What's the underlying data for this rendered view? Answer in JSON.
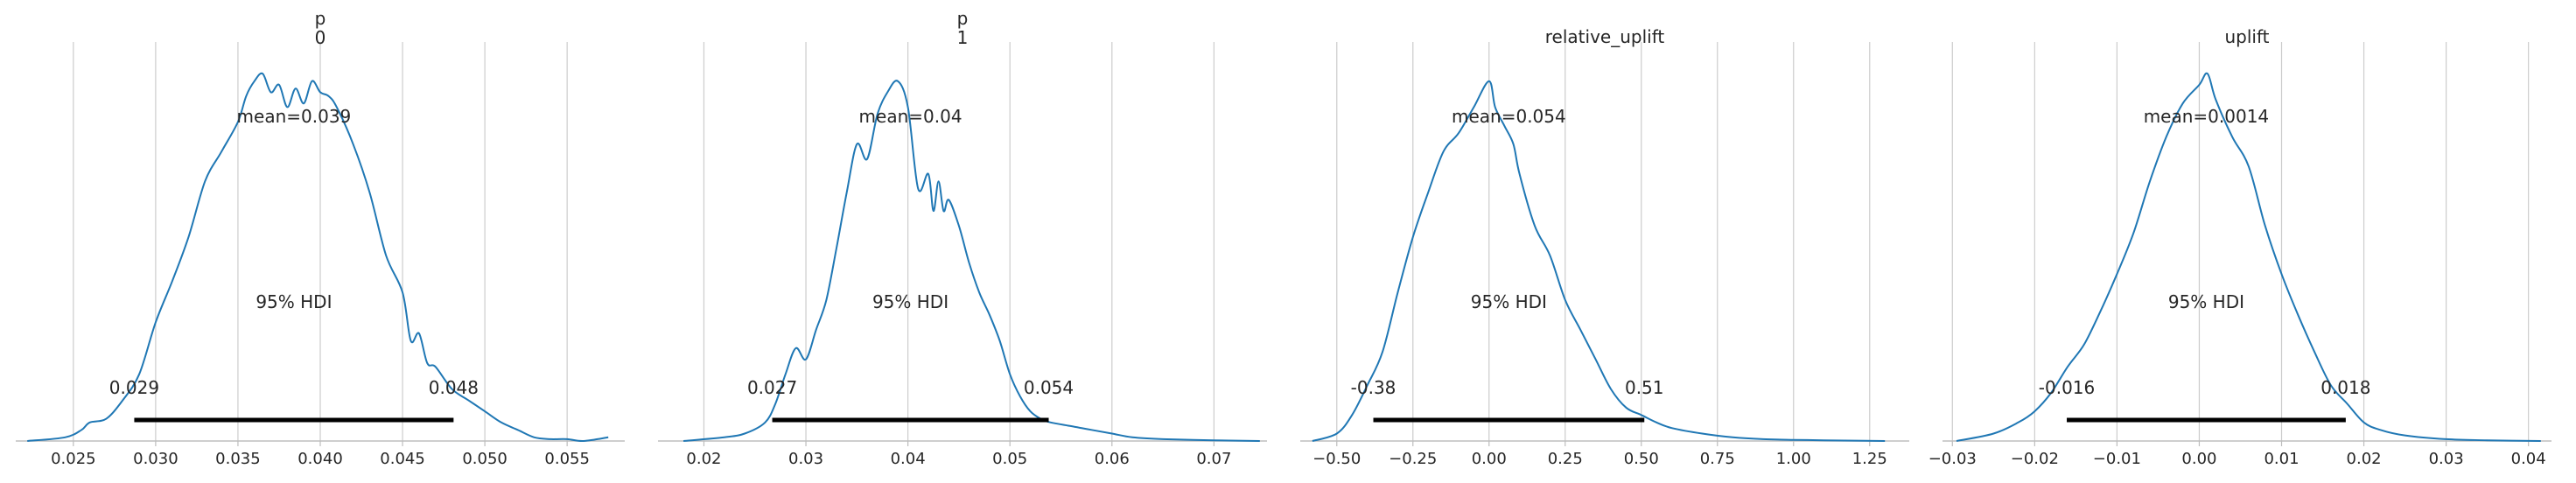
{
  "chart_data": [
    {
      "type": "density",
      "title": "p\n0",
      "title_lines": [
        "p",
        "0"
      ],
      "xlim": [
        0.0215,
        0.0585
      ],
      "x_ticks": [
        0.025,
        0.03,
        0.035,
        0.04,
        0.045,
        0.05,
        0.055
      ],
      "x_tick_labels": [
        "0.025",
        "0.030",
        "0.035",
        "0.040",
        "0.045",
        "0.050",
        "0.055"
      ],
      "grid": "vertical",
      "mean_label": "mean=0.039",
      "hdi_label": "95% HDI",
      "hdi": [
        0.0287,
        0.0481
      ],
      "hdi_low_label": "0.029",
      "hdi_high_label": "0.048",
      "line_color": "#1f77b4",
      "curve": {
        "x": [
          0.0222,
          0.0245,
          0.0255,
          0.026,
          0.027,
          0.028,
          0.029,
          0.03,
          0.031,
          0.032,
          0.033,
          0.034,
          0.035,
          0.0355,
          0.036,
          0.0365,
          0.037,
          0.0375,
          0.038,
          0.0385,
          0.039,
          0.0395,
          0.04,
          0.0405,
          0.041,
          0.042,
          0.043,
          0.044,
          0.045,
          0.0455,
          0.046,
          0.0465,
          0.047,
          0.048,
          0.049,
          0.05,
          0.051,
          0.052,
          0.053,
          0.054,
          0.055,
          0.056,
          0.0575
        ],
        "y": [
          0.0,
          0.01,
          0.03,
          0.05,
          0.06,
          0.11,
          0.18,
          0.32,
          0.43,
          0.55,
          0.7,
          0.78,
          0.86,
          0.93,
          0.97,
          0.99,
          0.94,
          0.96,
          0.9,
          0.95,
          0.91,
          0.97,
          0.94,
          0.93,
          0.9,
          0.8,
          0.67,
          0.5,
          0.4,
          0.27,
          0.29,
          0.21,
          0.2,
          0.14,
          0.11,
          0.08,
          0.05,
          0.03,
          0.01,
          0.005,
          0.005,
          0.0,
          0.01
        ]
      }
    },
    {
      "type": "density",
      "title": "p\n1",
      "title_lines": [
        "p",
        "1"
      ],
      "xlim": [
        0.0155,
        0.0752
      ],
      "x_ticks": [
        0.02,
        0.03,
        0.04,
        0.05,
        0.06,
        0.07
      ],
      "x_tick_labels": [
        "0.02",
        "0.03",
        "0.04",
        "0.05",
        "0.06",
        "0.07"
      ],
      "grid": "vertical",
      "mean_label": "mean=0.04",
      "hdi_label": "95% HDI",
      "hdi": [
        0.0267,
        0.0538
      ],
      "hdi_low_label": "0.027",
      "hdi_high_label": "0.054",
      "line_color": "#1f77b4",
      "curve": {
        "x": [
          0.018,
          0.022,
          0.024,
          0.026,
          0.027,
          0.028,
          0.029,
          0.03,
          0.031,
          0.032,
          0.033,
          0.034,
          0.035,
          0.036,
          0.037,
          0.038,
          0.039,
          0.04,
          0.041,
          0.042,
          0.0425,
          0.043,
          0.0435,
          0.044,
          0.045,
          0.046,
          0.047,
          0.048,
          0.049,
          0.05,
          0.051,
          0.052,
          0.053,
          0.054,
          0.056,
          0.058,
          0.06,
          0.062,
          0.065,
          0.07,
          0.0745
        ],
        "y": [
          0.0,
          0.01,
          0.02,
          0.05,
          0.1,
          0.18,
          0.25,
          0.22,
          0.3,
          0.38,
          0.52,
          0.67,
          0.8,
          0.76,
          0.88,
          0.94,
          0.97,
          0.9,
          0.68,
          0.72,
          0.62,
          0.7,
          0.62,
          0.65,
          0.58,
          0.48,
          0.4,
          0.34,
          0.27,
          0.18,
          0.12,
          0.08,
          0.06,
          0.05,
          0.04,
          0.03,
          0.02,
          0.01,
          0.005,
          0.002,
          0.0
        ]
      }
    },
    {
      "type": "density",
      "title": "relative_uplift",
      "title_lines": [
        "relative_uplift"
      ],
      "xlim": [
        -0.62,
        1.38
      ],
      "x_ticks": [
        -0.5,
        -0.25,
        0.0,
        0.25,
        0.5,
        0.75,
        1.0,
        1.25
      ],
      "x_tick_labels": [
        "−0.50",
        "−0.25",
        "0.00",
        "0.25",
        "0.50",
        "0.75",
        "1.00",
        "1.25"
      ],
      "grid": "vertical",
      "mean_label": "mean=0.054",
      "hdi_label": "95% HDI",
      "hdi": [
        -0.38,
        0.51
      ],
      "hdi_low_label": "-0.38",
      "hdi_high_label": "0.51",
      "line_color": "#1f77b4",
      "curve": {
        "x": [
          -0.58,
          -0.5,
          -0.45,
          -0.4,
          -0.35,
          -0.3,
          -0.25,
          -0.2,
          -0.15,
          -0.1,
          -0.05,
          0.0,
          0.02,
          0.05,
          0.08,
          0.1,
          0.15,
          0.2,
          0.25,
          0.3,
          0.35,
          0.4,
          0.45,
          0.5,
          0.55,
          0.6,
          0.7,
          0.8,
          0.9,
          1.0,
          1.1,
          1.2,
          1.3
        ],
        "y": [
          0.0,
          0.02,
          0.07,
          0.15,
          0.24,
          0.4,
          0.55,
          0.67,
          0.78,
          0.83,
          0.9,
          0.97,
          0.9,
          0.85,
          0.8,
          0.72,
          0.58,
          0.5,
          0.38,
          0.3,
          0.22,
          0.14,
          0.09,
          0.07,
          0.05,
          0.035,
          0.02,
          0.01,
          0.005,
          0.003,
          0.002,
          0.001,
          0.0
        ]
      }
    },
    {
      "type": "density",
      "title": "uplift",
      "title_lines": [
        "uplift"
      ],
      "xlim": [
        -0.0312,
        0.0428
      ],
      "x_ticks": [
        -0.03,
        -0.02,
        -0.01,
        0.0,
        0.01,
        0.02,
        0.03,
        0.04
      ],
      "x_tick_labels": [
        "−0.03",
        "−0.02",
        "−0.01",
        "0.00",
        "0.01",
        "0.02",
        "0.03",
        "0.04"
      ],
      "grid": "vertical",
      "mean_label": "mean=0.0014",
      "hdi_label": "95% HDI",
      "hdi": [
        -0.0161,
        0.0178
      ],
      "hdi_low_label": "-0.016",
      "hdi_high_label": "0.018",
      "line_color": "#1f77b4",
      "curve": {
        "x": [
          -0.0295,
          -0.025,
          -0.022,
          -0.02,
          -0.018,
          -0.016,
          -0.014,
          -0.012,
          -0.01,
          -0.008,
          -0.006,
          -0.004,
          -0.002,
          0.0,
          0.001,
          0.002,
          0.004,
          0.006,
          0.008,
          0.01,
          0.012,
          0.014,
          0.016,
          0.018,
          0.02,
          0.022,
          0.025,
          0.03,
          0.035,
          0.0415
        ],
        "y": [
          0.0,
          0.02,
          0.05,
          0.08,
          0.13,
          0.2,
          0.26,
          0.35,
          0.45,
          0.56,
          0.7,
          0.82,
          0.91,
          0.96,
          0.99,
          0.92,
          0.82,
          0.74,
          0.58,
          0.45,
          0.34,
          0.24,
          0.15,
          0.1,
          0.05,
          0.03,
          0.015,
          0.005,
          0.002,
          0.0
        ]
      }
    }
  ]
}
